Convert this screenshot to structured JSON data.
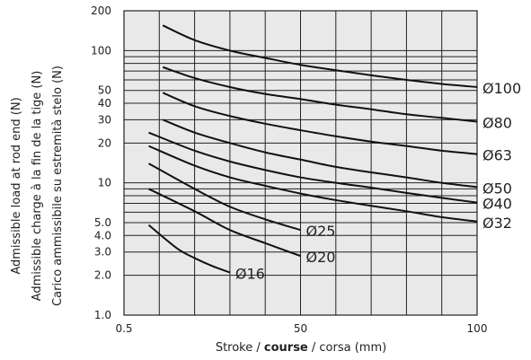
{
  "chart_data": {
    "type": "line",
    "title": "",
    "xlabel": {
      "parts": [
        "Stroke / ",
        "course",
        " / corsa (mm)"
      ]
    },
    "ylabel": [
      "Admissible load at rod end (N)",
      "Admissible charge à la fin de la tige (N)",
      "Carico ammissibile su estremità stelo (N)"
    ],
    "xlim": [
      0,
      100
    ],
    "ylim": [
      1,
      200
    ],
    "yscale": "log",
    "grid": true,
    "x_tick_labels": [
      "0.5",
      "50",
      "100"
    ],
    "y_tick_labels": [
      "1.0",
      "2.0",
      "3.0",
      "4.0",
      "5.0",
      "10",
      "20",
      "30",
      "40",
      "50",
      "100",
      "200"
    ],
    "series": [
      {
        "name": "Ø100",
        "x": [
          11,
          20,
          30,
          40,
          50,
          60,
          70,
          80,
          90,
          100
        ],
        "y": [
          155,
          120,
          100,
          88,
          78,
          71,
          65,
          60,
          56,
          53
        ]
      },
      {
        "name": "Ø80",
        "x": [
          11,
          20,
          30,
          40,
          50,
          60,
          70,
          80,
          90,
          100
        ],
        "y": [
          75,
          62,
          53,
          47,
          43,
          39,
          36,
          33,
          31,
          29
        ]
      },
      {
        "name": "Ø63",
        "x": [
          11,
          20,
          30,
          40,
          50,
          60,
          70,
          80,
          90,
          100
        ],
        "y": [
          48,
          38,
          32,
          28,
          25,
          22.5,
          20.5,
          19,
          17.5,
          16.5
        ]
      },
      {
        "name": "Ø50",
        "x": [
          11,
          20,
          30,
          40,
          50,
          60,
          70,
          80,
          90,
          100
        ],
        "y": [
          30,
          24,
          20,
          17,
          15,
          13.2,
          12,
          11,
          10,
          9.3
        ]
      },
      {
        "name": "Ø40",
        "x": [
          7,
          20,
          30,
          40,
          50,
          60,
          70,
          80,
          90,
          100
        ],
        "y": [
          24,
          17.5,
          14.5,
          12.5,
          11,
          10,
          9.2,
          8.4,
          7.7,
          7.1
        ]
      },
      {
        "name": "Ø32",
        "x": [
          7,
          20,
          30,
          40,
          50,
          60,
          70,
          80,
          90,
          100
        ],
        "y": [
          19,
          13.5,
          11,
          9.5,
          8.3,
          7.4,
          6.7,
          6.1,
          5.5,
          5.1
        ]
      },
      {
        "name": "Ø25",
        "x": [
          7,
          20,
          30,
          40,
          50
        ],
        "y": [
          14,
          9.0,
          6.6,
          5.3,
          4.4
        ]
      },
      {
        "name": "Ø20",
        "x": [
          7,
          20,
          30,
          40,
          50
        ],
        "y": [
          9.0,
          6.1,
          4.4,
          3.5,
          2.8
        ]
      },
      {
        "name": "Ø16",
        "x": [
          7,
          15,
          20,
          25,
          30
        ],
        "y": [
          4.8,
          3.2,
          2.7,
          2.35,
          2.1
        ]
      }
    ]
  }
}
